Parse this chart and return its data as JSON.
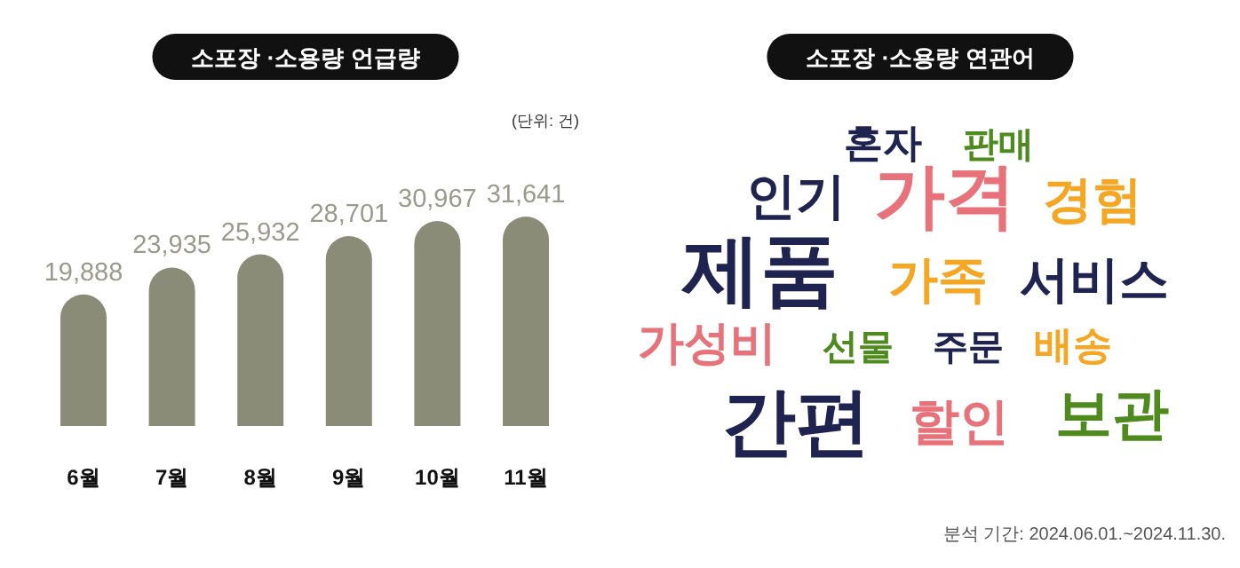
{
  "chart_data": [
    {
      "type": "bar",
      "title": "소포장 ·소용량 언급량",
      "categories": [
        "6월",
        "7월",
        "8월",
        "9월",
        "10월",
        "11월"
      ],
      "values": [
        19888,
        23935,
        25932,
        28701,
        30967,
        31641
      ],
      "color": "#8b8c78",
      "value_labels": [
        "19,888",
        "23,935",
        "25,932",
        "28,701",
        "30,967",
        "31,641"
      ],
      "annotations": [
        "(단위: 건)"
      ]
    },
    {
      "type": "other",
      "title": "소포장 ·소용량 연관어",
      "categories": [
        "혼자",
        "판매",
        "인기",
        "가격",
        "경험",
        "제품",
        "가족",
        "서비스",
        "가성비",
        "선물",
        "주문",
        "배송",
        "간편",
        "할인",
        "보관"
      ],
      "colors": [
        "#1e2350",
        "#4f8a1e",
        "#1e2350",
        "#e8727a",
        "#f5a623",
        "#1e2350",
        "#f5a623",
        "#1e2350",
        "#e8727a",
        "#4f8a1e",
        "#1e2350",
        "#f5a623",
        "#1e2350",
        "#e8727a",
        "#4f8a1e"
      ],
      "annotations": [
        "분석 기간: 2024.06.01.~2024.11.30."
      ]
    }
  ]
}
